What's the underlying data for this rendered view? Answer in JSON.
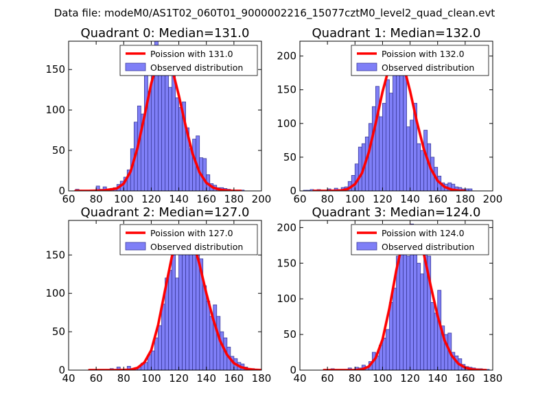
{
  "figure": {
    "suptitle": "Data file: modeM0/AS1T02_060T01_9000002216_15077cztM0_level2_quad_clean.evt",
    "colors": {
      "hist_fill": "#7f7ff7",
      "hist_edge": "#3a3a9a",
      "poisson_line": "#ff0000",
      "axes": "#000000",
      "background": "#ffffff"
    }
  },
  "chart_data": [
    {
      "type": "bar",
      "title": "Quadrant 0: Median=131.0",
      "xlim": [
        60,
        200
      ],
      "ylim": [
        0,
        185
      ],
      "xticks": [
        60,
        80,
        100,
        120,
        140,
        160,
        180,
        200
      ],
      "yticks": [
        0,
        50,
        100,
        150
      ],
      "xlabel": "",
      "ylabel": "",
      "legend": {
        "placement": "top-right",
        "entries": [
          "Poission with 131.0",
          "Observed distribution"
        ]
      },
      "histogram": {
        "name": "Observed distribution",
        "bin_width": 2.5,
        "bin_starts": [
          65,
          67.5,
          70,
          72.5,
          75,
          77.5,
          80,
          82.5,
          85,
          87.5,
          90,
          92.5,
          95,
          97.5,
          100,
          102.5,
          105,
          107.5,
          110,
          112.5,
          115,
          117.5,
          120,
          122.5,
          125,
          127.5,
          130,
          132.5,
          135,
          137.5,
          140,
          142.5,
          145,
          147.5,
          150,
          152.5,
          155,
          157.5,
          160,
          162.5,
          165,
          167.5,
          170,
          172.5,
          175,
          177.5,
          180,
          182.5,
          185
        ],
        "counts": [
          2,
          1,
          0,
          0,
          1,
          0,
          6,
          2,
          5,
          2,
          3,
          4,
          8,
          12,
          17,
          26,
          52,
          85,
          105,
          95,
          176,
          123,
          152,
          185,
          170,
          152,
          170,
          128,
          152,
          115,
          103,
          110,
          78,
          52,
          64,
          68,
          41,
          40,
          20,
          9,
          7,
          4,
          4,
          3,
          2,
          1,
          1,
          1,
          1
        ]
      },
      "poisson": {
        "name": "Poission with 131.0",
        "x": [
          65,
          75,
          85,
          95,
          100,
          105,
          110,
          115,
          120,
          125,
          130,
          135,
          140,
          145,
          150,
          155,
          160,
          165,
          170,
          175,
          180,
          185
        ],
        "y": [
          0,
          0,
          0.5,
          3,
          9,
          24,
          53,
          92,
          133,
          162,
          168,
          152,
          118,
          80,
          46,
          23,
          10,
          4,
          1.5,
          0.5,
          0,
          0
        ]
      }
    },
    {
      "type": "bar",
      "title": "Quadrant 1: Median=132.0",
      "xlim": [
        60,
        200
      ],
      "ylim": [
        0,
        222
      ],
      "xticks": [
        60,
        80,
        100,
        120,
        140,
        160,
        180,
        200
      ],
      "yticks": [
        0,
        50,
        100,
        150,
        200
      ],
      "xlabel": "",
      "ylabel": "",
      "legend": {
        "placement": "top-right",
        "entries": [
          "Poission with 132.0",
          "Observed distribution"
        ]
      },
      "histogram": {
        "name": "Observed distribution",
        "bin_width": 2.5,
        "bin_starts": [
          62.5,
          65,
          67.5,
          70,
          72.5,
          75,
          77.5,
          80,
          82.5,
          85,
          87.5,
          90,
          92.5,
          95,
          97.5,
          100,
          102.5,
          105,
          107.5,
          110,
          112.5,
          115,
          117.5,
          120,
          122.5,
          125,
          127.5,
          130,
          132.5,
          135,
          137.5,
          140,
          142.5,
          145,
          147.5,
          150,
          152.5,
          155,
          157.5,
          160,
          162.5,
          165,
          167.5,
          170,
          172.5,
          175,
          177.5,
          180,
          182.5
        ],
        "counts": [
          1,
          1,
          2,
          1,
          2,
          1,
          1,
          3,
          1,
          4,
          2,
          5,
          6,
          14,
          23,
          40,
          65,
          70,
          80,
          100,
          125,
          155,
          110,
          130,
          165,
          145,
          212,
          180,
          205,
          195,
          95,
          105,
          130,
          70,
          60,
          90,
          70,
          50,
          35,
          22,
          12,
          10,
          12,
          10,
          6,
          5,
          3,
          3,
          3
        ]
      },
      "poisson": {
        "name": "Poission with 132.0",
        "x": [
          70,
          80,
          90,
          95,
          100,
          105,
          110,
          115,
          120,
          125,
          130,
          135,
          140,
          145,
          150,
          155,
          160,
          165,
          170,
          175,
          180
        ],
        "y": [
          0,
          0,
          0.5,
          3,
          10,
          26,
          57,
          100,
          147,
          185,
          201,
          188,
          148,
          102,
          62,
          33,
          15,
          6,
          2,
          0.5,
          0
        ]
      }
    },
    {
      "type": "bar",
      "title": "Quadrant 2: Median=127.0",
      "xlim": [
        40,
        180
      ],
      "ylim": [
        0,
        195
      ],
      "xticks": [
        40,
        60,
        80,
        100,
        120,
        140,
        160,
        180
      ],
      "yticks": [
        0,
        50,
        100,
        150
      ],
      "xlabel": "",
      "ylabel": "",
      "legend": {
        "placement": "top-right",
        "entries": [
          "Poission with 127.0",
          "Observed distribution"
        ]
      },
      "histogram": {
        "name": "Observed distribution",
        "bin_width": 2.5,
        "bin_starts": [
          55,
          57.5,
          60,
          62.5,
          65,
          67.5,
          70,
          72.5,
          75,
          77.5,
          80,
          82.5,
          85,
          87.5,
          90,
          92.5,
          95,
          97.5,
          100,
          102.5,
          105,
          107.5,
          110,
          112.5,
          115,
          117.5,
          120,
          122.5,
          125,
          127.5,
          130,
          132.5,
          135,
          137.5,
          140,
          142.5,
          145,
          147.5,
          150,
          152.5,
          155,
          157.5,
          160,
          162.5,
          165,
          167.5,
          170,
          172.5,
          175,
          177.5
        ],
        "counts": [
          1,
          0,
          1,
          1,
          0,
          1,
          2,
          1,
          4,
          0,
          1,
          5,
          2,
          3,
          4,
          9,
          10,
          20,
          25,
          42,
          58,
          86,
          120,
          130,
          150,
          120,
          160,
          175,
          160,
          185,
          172,
          150,
          145,
          110,
          90,
          70,
          85,
          70,
          50,
          42,
          30,
          18,
          15,
          10,
          8,
          4,
          2,
          2,
          1,
          1
        ]
      },
      "poisson": {
        "name": "Poission with 127.0",
        "x": [
          55,
          65,
          75,
          85,
          90,
          95,
          100,
          105,
          110,
          115,
          120,
          125,
          130,
          135,
          140,
          145,
          150,
          155,
          160,
          165,
          170,
          175,
          180
        ],
        "y": [
          0,
          0,
          0,
          0.5,
          3,
          10,
          26,
          59,
          104,
          148,
          178,
          186,
          170,
          138,
          100,
          66,
          38,
          20,
          9,
          4,
          1.5,
          0.5,
          0
        ]
      }
    },
    {
      "type": "bar",
      "title": "Quadrant 3: Median=124.0",
      "xlim": [
        40,
        180
      ],
      "ylim": [
        0,
        210
      ],
      "xticks": [
        40,
        60,
        80,
        100,
        120,
        140,
        160,
        180
      ],
      "yticks": [
        0,
        50,
        100,
        150,
        200
      ],
      "xlabel": "",
      "ylabel": "",
      "legend": {
        "placement": "top-right",
        "entries": [
          "Poission with 124.0",
          "Observed distribution"
        ]
      },
      "histogram": {
        "name": "Observed distribution",
        "bin_width": 2.5,
        "bin_starts": [
          57.5,
          60,
          62.5,
          65,
          67.5,
          70,
          72.5,
          75,
          77.5,
          80,
          82.5,
          85,
          87.5,
          90,
          92.5,
          95,
          97.5,
          100,
          102.5,
          105,
          107.5,
          110,
          112.5,
          115,
          117.5,
          120,
          122.5,
          125,
          127.5,
          130,
          132.5,
          135,
          137.5,
          140,
          142.5,
          145,
          147.5,
          150,
          152.5,
          155,
          157.5,
          160,
          162.5,
          165,
          167.5,
          170,
          172.5,
          175
        ],
        "counts": [
          1,
          1,
          2,
          0,
          1,
          1,
          1,
          3,
          1,
          4,
          3,
          7,
          5,
          12,
          25,
          20,
          35,
          45,
          57,
          95,
          115,
          160,
          168,
          185,
          160,
          205,
          175,
          150,
          135,
          165,
          160,
          95,
          80,
          112,
          62,
          50,
          52,
          25,
          20,
          16,
          8,
          5,
          4,
          3,
          2,
          2,
          1,
          1
        ]
      },
      "poisson": {
        "name": "Poission with 124.0",
        "x": [
          57.5,
          70,
          80,
          85,
          90,
          95,
          100,
          105,
          110,
          115,
          120,
          125,
          130,
          135,
          140,
          145,
          150,
          155,
          160,
          165,
          170,
          175
        ],
        "y": [
          0,
          0,
          0,
          1,
          5,
          17,
          43,
          87,
          140,
          183,
          203,
          196,
          163,
          118,
          76,
          42,
          21,
          9,
          3.5,
          1,
          0.3,
          0
        ]
      }
    }
  ]
}
